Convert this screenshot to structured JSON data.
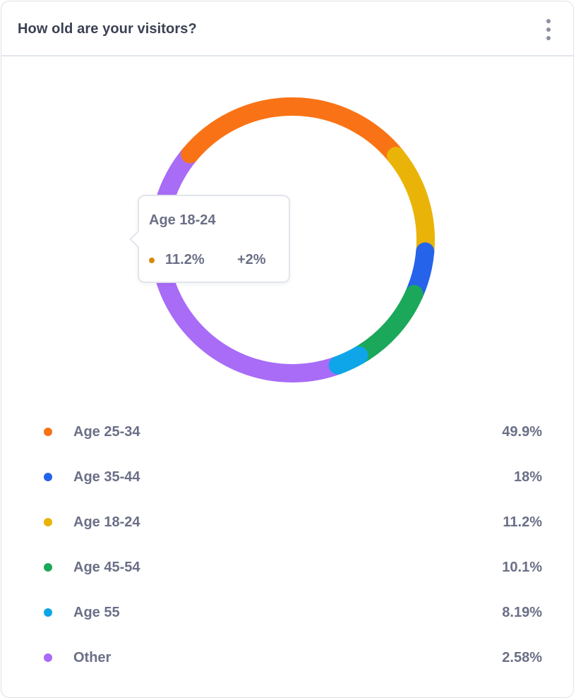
{
  "card": {
    "title": "How old are your visitors?",
    "menu_icon": "kebab-vertical-icon"
  },
  "tooltip": {
    "label": "Age 18-24",
    "value": "11.2%",
    "change": "+2%",
    "dot_color": "#d98a0b"
  },
  "chart_data": {
    "type": "pie",
    "variant": "donut",
    "slices": [
      {
        "label": "Age 25-34",
        "value": 49.9,
        "display": "49.9%",
        "color": "#f97316"
      },
      {
        "label": "Age 35-44",
        "value": 18,
        "display": "18%",
        "color": "#2563eb"
      },
      {
        "label": "Age 18-24",
        "value": 11.2,
        "display": "11.2%",
        "color": "#eab308"
      },
      {
        "label": "Age 45-54",
        "value": 10.1,
        "display": "10.1%",
        "color": "#1ca85a"
      },
      {
        "label": "Age 55",
        "value": 8.19,
        "display": "8.19%",
        "color": "#0ea5e9"
      },
      {
        "label": "Other",
        "value": 2.58,
        "display": "2.58%",
        "color": "#a86cf7"
      }
    ],
    "legend_position": "bottom"
  }
}
